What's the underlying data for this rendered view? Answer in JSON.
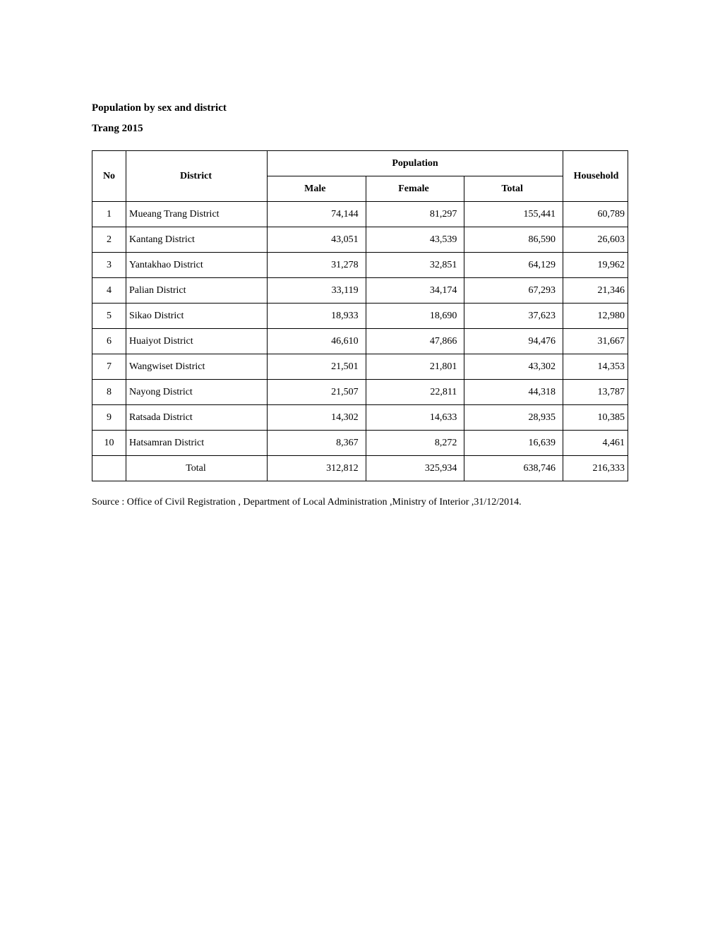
{
  "title": "Population by sex and district",
  "subtitle": "Trang 2015",
  "table": {
    "headers": {
      "no": "No",
      "district": "District",
      "population_group": "Population",
      "male": "Male",
      "female": "Female",
      "total": "Total",
      "household": "Household"
    },
    "rows": [
      {
        "no": "1",
        "district": "Mueang Trang District",
        "male": "74,144",
        "female": "81,297",
        "total": "155,441",
        "household": "60,789"
      },
      {
        "no": "2",
        "district": "Kantang District",
        "male": "43,051",
        "female": "43,539",
        "total": "86,590",
        "household": "26,603"
      },
      {
        "no": "3",
        "district": "Yantakhao District",
        "male": "31,278",
        "female": "32,851",
        "total": "64,129",
        "household": "19,962"
      },
      {
        "no": "4",
        "district": "Palian District",
        "male": "33,119",
        "female": "34,174",
        "total": "67,293",
        "household": "21,346"
      },
      {
        "no": "5",
        "district": "Sikao District",
        "male": "18,933",
        "female": "18,690",
        "total": "37,623",
        "household": "12,980"
      },
      {
        "no": "6",
        "district": "Huaiyot District",
        "male": "46,610",
        "female": "47,866",
        "total": "94,476",
        "household": "31,667"
      },
      {
        "no": "7",
        "district": "Wangwiset District",
        "male": "21,501",
        "female": "21,801",
        "total": "43,302",
        "household": "14,353"
      },
      {
        "no": "8",
        "district": "Nayong  District",
        "male": "21,507",
        "female": "22,811",
        "total": "44,318",
        "household": "13,787"
      },
      {
        "no": "9",
        "district": "Ratsada District",
        "male": "14,302",
        "female": "14,633",
        "total": "28,935",
        "household": "10,385"
      },
      {
        "no": "10",
        "district": "Hatsamran District",
        "male": "8,367",
        "female": "8,272",
        "total": "16,639",
        "household": "4,461"
      }
    ],
    "total_row": {
      "label": "Total",
      "male": "312,812",
      "female": "325,934",
      "total": "638,746",
      "household": "216,333"
    }
  },
  "source": "Source :  Office of Civil Registration , Department of Local Administration  ,Ministry of Interior ,31/12/2014."
}
